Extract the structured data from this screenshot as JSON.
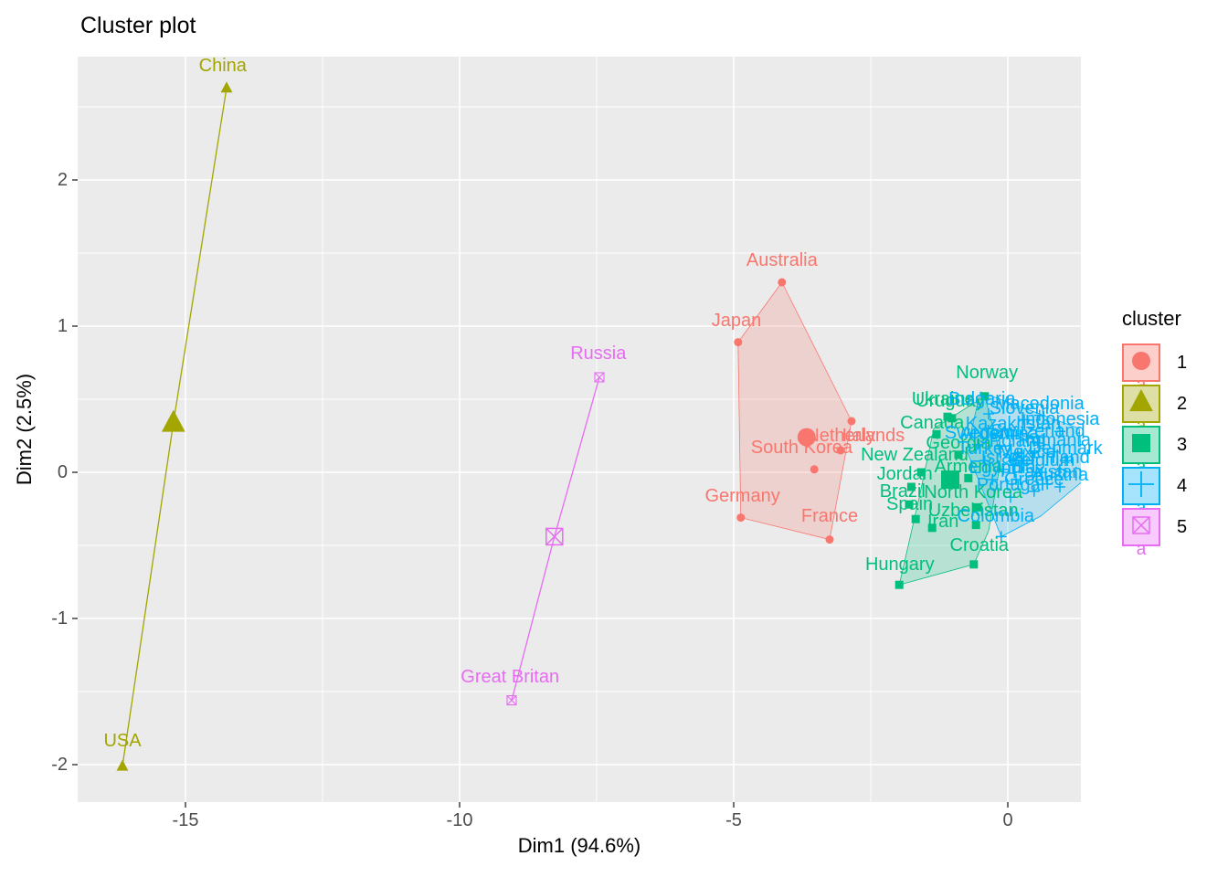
{
  "title": "Cluster plot",
  "axes": {
    "x_title": "Dim1 (94.6%)",
    "y_title": "Dim2 (2.5%)",
    "x_tick_labels": [
      "-15",
      "-10",
      "-5",
      "0"
    ],
    "y_tick_labels": [
      "2",
      "1",
      "0",
      "-1",
      "-2"
    ]
  },
  "legend": {
    "title": "cluster",
    "glyph": "a",
    "entries": [
      {
        "label": "1",
        "color": "#F8766D",
        "fill": "#FCCFCB",
        "shape": "circle"
      },
      {
        "label": "2",
        "color": "#A3A500",
        "fill": "#DEDFA5",
        "shape": "triangle"
      },
      {
        "label": "3",
        "color": "#00BF7D",
        "fill": "#A6E8D1",
        "shape": "square"
      },
      {
        "label": "4",
        "color": "#00B0F6",
        "fill": "#A6E3FC",
        "shape": "plus"
      },
      {
        "label": "5",
        "color": "#E76BF3",
        "fill": "#F7CBFB",
        "shape": "square-x"
      }
    ]
  },
  "chart_data": {
    "type": "scatter",
    "title": "Cluster plot",
    "xlabel": "Dim1 (94.6%)",
    "ylabel": "Dim2 (2.5%)",
    "xlim": [
      -16.97,
      1.33
    ],
    "ylim": [
      -2.26,
      2.84
    ],
    "x_ticks": [
      -15,
      -10,
      -5,
      0
    ],
    "y_ticks": [
      2,
      1,
      0,
      -1,
      -2
    ],
    "grid": {
      "minor_x": [
        -12.5,
        -7.5,
        -2.5
      ],
      "minor_y": [
        2.5,
        1.5,
        0.5,
        -0.5,
        -1.5
      ]
    },
    "panel_bg": "#EBEBEB",
    "legend_title": "cluster",
    "clusters": [
      {
        "id": "1",
        "color": "#F8766D",
        "shape": "circle",
        "connect": false,
        "centroid": [
          -3.67,
          0.24
        ],
        "hull": [
          [
            -4.12,
            1.3
          ],
          [
            -2.85,
            0.35
          ],
          [
            -3.25,
            -0.46
          ],
          [
            -4.87,
            -0.31
          ],
          [
            -4.92,
            0.89
          ]
        ],
        "points": [
          {
            "name": "Australia",
            "x": -4.12,
            "y": 1.3,
            "lx": -4.12,
            "ly": 1.45
          },
          {
            "name": "Japan",
            "x": -4.92,
            "y": 0.89,
            "lx": -4.95,
            "ly": 1.04
          },
          {
            "name": "South Korea",
            "x": -3.53,
            "y": 0.02,
            "lx": -3.76,
            "ly": 0.17
          },
          {
            "name": "Germany",
            "x": -4.87,
            "y": -0.31,
            "lx": -4.84,
            "ly": -0.16
          },
          {
            "name": "France",
            "x": -3.25,
            "y": -0.46,
            "lx": -3.25,
            "ly": -0.3
          },
          {
            "name": "Netherlands",
            "x": -2.85,
            "y": 0.35,
            "lx": -2.78,
            "ly": 0.25
          },
          {
            "name": "Italy",
            "x": -3.05,
            "y": 0.15,
            "lx": -2.72,
            "ly": 0.25
          }
        ]
      },
      {
        "id": "2",
        "color": "#A3A500",
        "shape": "triangle",
        "connect": true,
        "centroid": [
          -15.22,
          0.34
        ],
        "hull": null,
        "points": [
          {
            "name": "China",
            "x": -14.25,
            "y": 2.63,
            "lx": -14.32,
            "ly": 2.78
          },
          {
            "name": "USA",
            "x": -16.15,
            "y": -2.01,
            "lx": -16.15,
            "ly": -1.84
          }
        ]
      },
      {
        "id": "3",
        "color": "#00BF7D",
        "shape": "square",
        "connect": false,
        "centroid": [
          -1.05,
          -0.05
        ],
        "hull": [
          [
            -1.98,
            -0.77
          ],
          [
            -1.62,
            -0.18
          ],
          [
            -1.35,
            0.3
          ],
          [
            -0.42,
            0.52
          ],
          [
            -0.12,
            0.1
          ],
          [
            -0.35,
            -0.4
          ],
          [
            -0.62,
            -0.63
          ]
        ],
        "points": [
          {
            "name": "Norway",
            "x": -0.42,
            "y": 0.52,
            "lx": -0.38,
            "ly": 0.68
          },
          {
            "name": "Ukraine",
            "x": -1.1,
            "y": 0.38,
            "lx": -1.18,
            "ly": 0.5
          },
          {
            "name": "Uruguay",
            "x": -1.02,
            "y": 0.37,
            "lx": -1.05,
            "ly": 0.49
          },
          {
            "name": "Canada",
            "x": -1.3,
            "y": 0.26,
            "lx": -1.38,
            "ly": 0.34
          },
          {
            "name": "New Zealand",
            "x": -1.58,
            "y": 0.0,
            "lx": -1.7,
            "ly": 0.12
          },
          {
            "name": "Jordan",
            "x": -1.76,
            "y": -0.1,
            "lx": -1.88,
            "ly": -0.01
          },
          {
            "name": "Brazil",
            "x": -1.8,
            "y": -0.22,
            "lx": -1.92,
            "ly": -0.13
          },
          {
            "name": "Spain",
            "x": -1.68,
            "y": -0.32,
            "lx": -1.79,
            "ly": -0.22
          },
          {
            "name": "Georgia",
            "x": -0.9,
            "y": 0.12,
            "lx": -0.9,
            "ly": 0.2
          },
          {
            "name": "Armenia",
            "x": -0.72,
            "y": -0.04,
            "lx": -0.72,
            "ly": 0.04
          },
          {
            "name": "North Korea",
            "x": -0.55,
            "y": -0.24,
            "lx": -0.63,
            "ly": -0.14
          },
          {
            "name": "Uzbekistan",
            "x": -0.58,
            "y": -0.36,
            "lx": -0.63,
            "ly": -0.26
          },
          {
            "name": "Iran",
            "x": -1.38,
            "y": -0.38,
            "lx": -1.18,
            "ly": -0.34
          },
          {
            "name": "Croatia",
            "x": -0.62,
            "y": -0.63,
            "lx": -0.52,
            "ly": -0.5
          },
          {
            "name": "Hungary",
            "x": -1.98,
            "y": -0.77,
            "lx": -1.97,
            "ly": -0.63
          }
        ]
      },
      {
        "id": "4",
        "color": "#00B0F6",
        "shape": "plus",
        "connect": false,
        "centroid": [
          0.25,
          0.08
        ],
        "hull": [
          [
            -0.75,
            0.15
          ],
          [
            -0.5,
            0.55
          ],
          [
            1.3,
            0.3
          ],
          [
            1.4,
            -0.05
          ],
          [
            0.6,
            -0.3
          ],
          [
            -0.12,
            -0.44
          ]
        ],
        "points": [
          {
            "name": "Bulgaria",
            "x": -0.35,
            "y": 0.4,
            "lx": -0.47,
            "ly": 0.5
          },
          {
            "name": "Macedonia",
            "x": 0.58,
            "y": 0.39,
            "lx": 0.58,
            "ly": 0.47
          },
          {
            "name": "Slovenia",
            "x": 0.3,
            "y": 0.36,
            "lx": 0.3,
            "ly": 0.44
          },
          {
            "name": "Indonesia",
            "x": 0.95,
            "y": 0.28,
            "lx": 0.95,
            "ly": 0.36
          },
          {
            "name": "Kazakhstan",
            "x": 0.1,
            "y": 0.25,
            "lx": 0.1,
            "ly": 0.33
          },
          {
            "name": "Sweden",
            "x": -0.55,
            "y": 0.19,
            "lx": -0.55,
            "ly": 0.27
          },
          {
            "name": "Switzerland",
            "x": 0.55,
            "y": 0.2,
            "lx": 0.55,
            "ly": 0.28
          },
          {
            "name": "Argentina",
            "x": -0.15,
            "y": 0.18,
            "lx": -0.15,
            "ly": 0.26
          },
          {
            "name": "Romania",
            "x": 0.85,
            "y": 0.14,
            "lx": 0.85,
            "ly": 0.22
          },
          {
            "name": "Poland",
            "x": 0.18,
            "y": 0.13,
            "lx": 0.18,
            "ly": 0.21
          },
          {
            "name": "Denmark",
            "x": 1.05,
            "y": 0.08,
            "lx": 1.05,
            "ly": 0.16
          },
          {
            "name": "Turkey",
            "x": -0.42,
            "y": 0.08,
            "lx": -0.42,
            "ly": 0.16
          },
          {
            "name": "Mexico",
            "x": 0.35,
            "y": 0.06,
            "lx": 0.35,
            "ly": 0.14
          },
          {
            "name": "Finland",
            "x": 0.95,
            "y": 0.02,
            "lx": 0.95,
            "ly": 0.1
          },
          {
            "name": "Israel",
            "x": -0.08,
            "y": 0.02,
            "lx": -0.08,
            "ly": 0.1
          },
          {
            "name": "Belgium",
            "x": 0.62,
            "y": 0.0,
            "lx": 0.62,
            "ly": 0.08
          },
          {
            "name": "India",
            "x": 0.15,
            "y": -0.05,
            "lx": 0.15,
            "ly": 0.03
          },
          {
            "name": "Egypt",
            "x": -0.28,
            "y": -0.05,
            "lx": -0.28,
            "ly": 0.03
          },
          {
            "name": "Pakistan",
            "x": 0.72,
            "y": -0.08,
            "lx": 0.72,
            "ly": 0.0
          },
          {
            "name": "Austria",
            "x": 0.95,
            "y": -0.1,
            "lx": 0.95,
            "ly": -0.02
          },
          {
            "name": "Greece",
            "x": 0.48,
            "y": -0.13,
            "lx": 0.48,
            "ly": -0.05
          },
          {
            "name": "Portugal",
            "x": 0.05,
            "y": -0.17,
            "lx": 0.05,
            "ly": -0.09
          },
          {
            "name": "Colombia",
            "x": -0.12,
            "y": -0.44,
            "lx": -0.22,
            "ly": -0.3
          }
        ]
      },
      {
        "id": "5",
        "color": "#E76BF3",
        "shape": "square-x",
        "connect": true,
        "centroid": [
          -8.27,
          -0.44
        ],
        "hull": null,
        "points": [
          {
            "name": "Russia",
            "x": -7.45,
            "y": 0.65,
            "lx": -7.47,
            "ly": 0.81
          },
          {
            "name": "Great Britan",
            "x": -9.05,
            "y": -1.56,
            "lx": -9.08,
            "ly": -1.4
          }
        ]
      }
    ]
  }
}
